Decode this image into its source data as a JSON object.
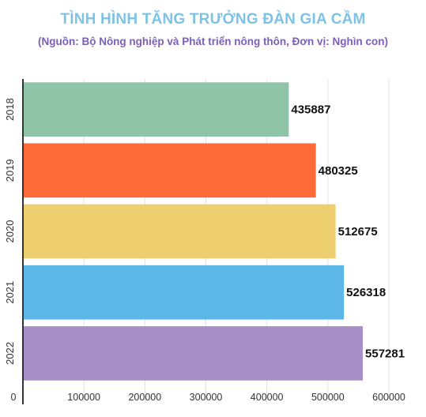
{
  "chart_data": {
    "type": "bar",
    "orientation": "horizontal",
    "title": "TÌNH HÌNH TĂNG TRƯỞNG ĐÀN GIA CẦM",
    "subtitle": "(Nguồn: Bộ Nông nghiệp và Phát triển nông thôn, Đơn vị: Nghìn con)",
    "categories": [
      "2018",
      "2019",
      "2020",
      "2021",
      "2022"
    ],
    "values": [
      435887,
      480325,
      512675,
      526318,
      557281
    ],
    "value_labels": [
      "435887",
      "480325",
      "512675",
      "526318",
      "557281"
    ],
    "colors": [
      "#8fc4a8",
      "#ff6a3b",
      "#eecf70",
      "#5cb7e6",
      "#a98fc8"
    ],
    "xlim": [
      0,
      600000
    ],
    "xticks": [
      0,
      100000,
      200000,
      300000,
      400000,
      500000,
      600000
    ],
    "xtick_labels": [
      "0",
      "100000",
      "200000",
      "300000",
      "400000",
      "500000",
      "600000"
    ],
    "grid": true
  }
}
